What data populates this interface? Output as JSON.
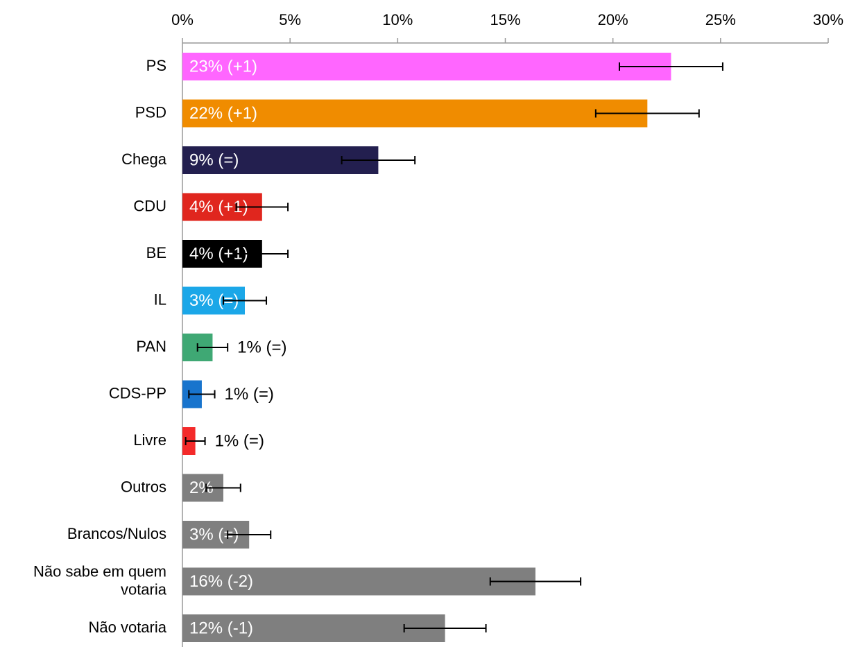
{
  "chart_data": {
    "type": "hbar",
    "categories": [
      "PS",
      "PSD",
      "Chega",
      "CDU",
      "BE",
      "IL",
      "PAN",
      "CDS-PP",
      "Livre",
      "Outros",
      "Brancos/Nulos",
      "Não sabe em quem votaria",
      "Não votaria"
    ],
    "values": [
      22.7,
      21.6,
      9.1,
      3.7,
      3.7,
      2.9,
      1.4,
      0.9,
      0.6,
      1.9,
      3.1,
      16.4,
      12.2
    ],
    "errors": [
      2.4,
      2.4,
      1.7,
      1.2,
      1.2,
      1.0,
      0.7,
      0.6,
      0.45,
      0.8,
      1.0,
      2.1,
      1.9
    ],
    "value_labels": [
      "23% (+1)",
      "22% (+1)",
      "9% (=)",
      "4% (+1)",
      "4% (+1)",
      "3% (=)",
      "1% (=)",
      "1% (=)",
      "1% (=)",
      "2%",
      "3% (=)",
      "16%  (-2)",
      "12% (-1)"
    ],
    "colors": [
      "#ff66ff",
      "#f08c00",
      "#231f4f",
      "#e0261e",
      "#000000",
      "#1ba7e8",
      "#3fa874",
      "#1874cd",
      "#f42a2a",
      "#7f7f7f",
      "#7f7f7f",
      "#7f7f7f",
      "#7f7f7f"
    ],
    "xlim": [
      0,
      30
    ],
    "xticks": [
      {
        "value": 0,
        "label": "0%"
      },
      {
        "value": 5,
        "label": "5%"
      },
      {
        "value": 10,
        "label": "10%"
      },
      {
        "value": 15,
        "label": "15%"
      },
      {
        "value": 20,
        "label": "20%"
      },
      {
        "value": 25,
        "label": "25%"
      },
      {
        "value": 30,
        "label": "30%"
      }
    ]
  }
}
